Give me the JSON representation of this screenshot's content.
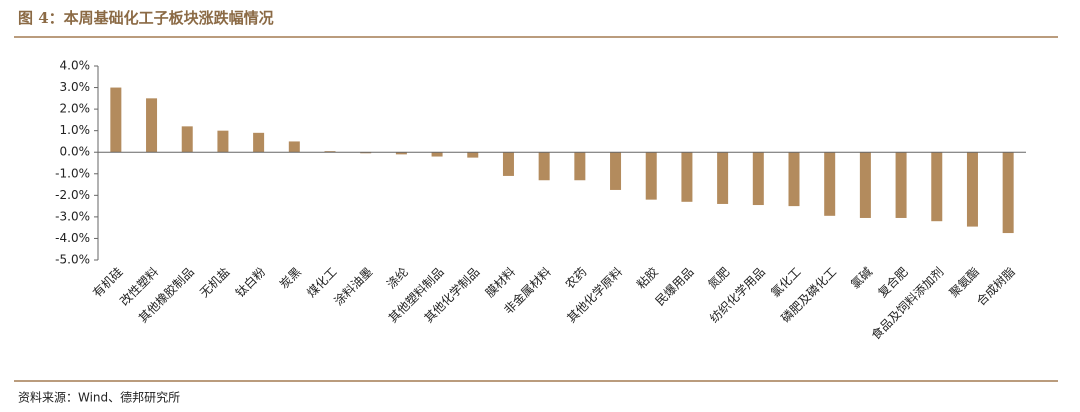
{
  "chart_data": {
    "type": "bar",
    "title": "图 4：本周基础化工子板块涨跌幅情况",
    "source": "资料来源：Wind、德邦研究所",
    "categories": [
      "有机硅",
      "改性塑料",
      "其他橡胶制品",
      "无机盐",
      "钛白粉",
      "炭黑",
      "煤化工",
      "涂料油墨",
      "涤纶",
      "其他塑料制品",
      "其他化学制品",
      "膜材料",
      "非金属材料",
      "农药",
      "其他化学原料",
      "粘胶",
      "民爆用品",
      "氮肥",
      "纺织化学用品",
      "氯化工",
      "磷肥及磷化工",
      "氯碱",
      "复合肥",
      "食品及饲料添加剂",
      "聚氨酯",
      "合成树脂"
    ],
    "values": [
      3.0,
      2.5,
      1.2,
      1.0,
      0.9,
      0.5,
      0.05,
      -0.05,
      -0.1,
      -0.2,
      -0.25,
      -1.1,
      -1.3,
      -1.3,
      -1.75,
      -2.2,
      -2.3,
      -2.4,
      -2.45,
      -2.5,
      -2.95,
      -3.05,
      -3.05,
      -3.2,
      -3.45,
      -3.75
    ],
    "color": "#b38b5d",
    "ylim": [
      -5,
      4
    ],
    "yticks": [
      {
        "value": -5,
        "label": "-5.0%"
      },
      {
        "value": -4,
        "label": "-4.0%"
      },
      {
        "value": -3,
        "label": "-3.0%"
      },
      {
        "value": -2,
        "label": "-2.0%"
      },
      {
        "value": -1,
        "label": "-1.0%"
      },
      {
        "value": 0,
        "label": "0.0%"
      },
      {
        "value": 1,
        "label": "1.0%"
      },
      {
        "value": 2,
        "label": "2.0%"
      },
      {
        "value": 3,
        "label": "3.0%"
      },
      {
        "value": 4,
        "label": "4.0%"
      }
    ],
    "grid": false
  }
}
